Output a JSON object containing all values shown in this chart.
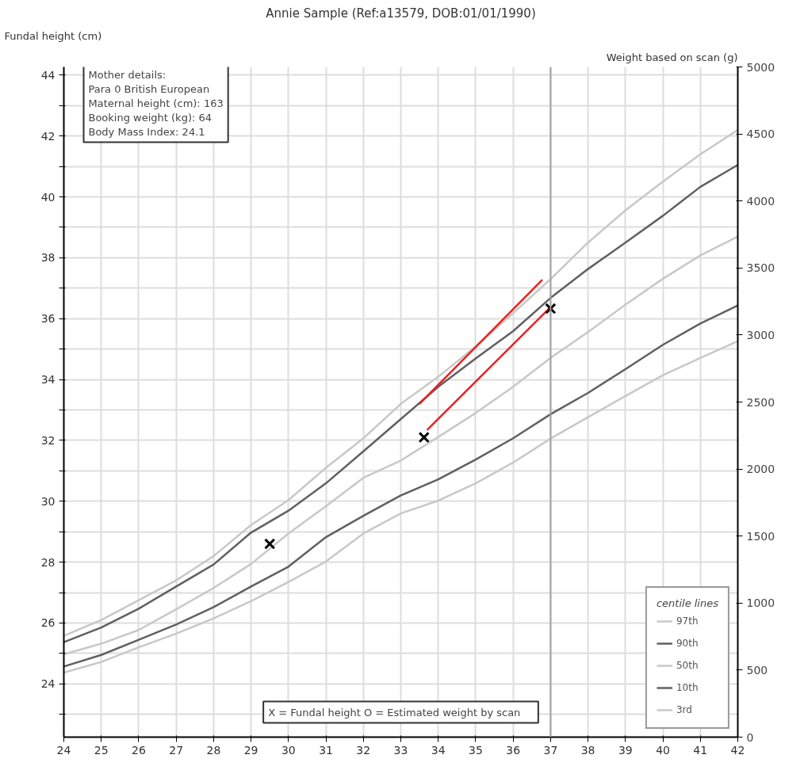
{
  "chart_data": {
    "type": "line",
    "title": "Annie Sample (Ref:a13579, DOB:01/01/1990)",
    "ylabel": "Fundal height (cm)",
    "y2label": "Weight based on scan (g)",
    "legend_title": "centile lines",
    "legend": "bottom right",
    "grid": true,
    "x": [
      24,
      25,
      26,
      27,
      28,
      29,
      30,
      31,
      32,
      33,
      34,
      35,
      36,
      37,
      38,
      39,
      40,
      41,
      42
    ],
    "xlim": [
      24,
      42
    ],
    "xticks": [
      24,
      25,
      26,
      27,
      28,
      29,
      30,
      31,
      32,
      33,
      34,
      35,
      36,
      37,
      38,
      39,
      40,
      41,
      42
    ],
    "ylim": [
      22.25,
      44.27
    ],
    "yticks": [
      {
        "value": 23,
        "label": null
      },
      24,
      {
        "value": 25,
        "label": null
      },
      26,
      {
        "value": 27,
        "label": null
      },
      28,
      {
        "value": 29,
        "label": null
      },
      30,
      {
        "value": 31,
        "label": null
      },
      32,
      {
        "value": 33,
        "label": null
      },
      34,
      {
        "value": 35,
        "label": null
      },
      36,
      {
        "value": 37,
        "label": null
      },
      38,
      {
        "value": 39,
        "label": null
      },
      40,
      {
        "value": 41,
        "label": null
      },
      42,
      {
        "value": 43,
        "label": null
      },
      44
    ],
    "y2lim": [
      0,
      5000
    ],
    "y2ticks": [
      0,
      500,
      1000,
      1500,
      2000,
      2500,
      3000,
      3500,
      4000,
      4500,
      5000
    ],
    "ref_lines": [
      {
        "axis": "x",
        "value": 37,
        "color": "#a0a0a0"
      }
    ],
    "series": [
      {
        "name": "97th",
        "color": "#c8c8c8",
        "values": [
          25.58,
          26.1,
          26.75,
          27.4,
          28.2,
          29.22,
          30.04,
          31.1,
          32.07,
          33.2,
          34.09,
          35.09,
          36.18,
          37.3,
          38.5,
          39.56,
          40.5,
          41.4,
          42.2
        ]
      },
      {
        "name": "90th",
        "color": "#606060",
        "values": [
          25.37,
          25.85,
          26.47,
          27.2,
          27.92,
          28.97,
          29.69,
          30.59,
          31.64,
          32.7,
          33.76,
          34.69,
          35.59,
          36.68,
          37.63,
          38.5,
          39.38,
          40.33,
          41.05
        ]
      },
      {
        "name": "50th",
        "color": "#c8c8c8",
        "values": [
          24.97,
          25.32,
          25.77,
          26.45,
          27.15,
          27.94,
          28.94,
          29.84,
          30.77,
          31.34,
          32.11,
          32.9,
          33.76,
          34.71,
          35.56,
          36.46,
          37.31,
          38.08,
          38.7
        ]
      },
      {
        "name": "10th",
        "color": "#606060",
        "values": [
          24.57,
          24.95,
          25.45,
          25.95,
          26.52,
          27.2,
          27.85,
          28.82,
          29.52,
          30.19,
          30.72,
          31.37,
          32.07,
          32.86,
          33.56,
          34.34,
          35.14,
          35.84,
          36.43
        ]
      },
      {
        "name": "3rd",
        "color": "#c8c8c8",
        "values": [
          24.37,
          24.72,
          25.2,
          25.65,
          26.15,
          26.72,
          27.35,
          28.02,
          28.94,
          29.6,
          30.02,
          30.59,
          31.27,
          32.06,
          32.76,
          33.46,
          34.14,
          34.71,
          35.26
        ]
      },
      {
        "type": "line",
        "color": "#ee2020",
        "x": [
          33.49,
          36.78
        ],
        "values": [
          33.19,
          37.28
        ]
      },
      {
        "type": "line",
        "color": "#ee2020",
        "x": [
          33.7,
          37.0
        ],
        "values": [
          32.34,
          36.38
        ]
      },
      {
        "type": "scatter",
        "marker": "cross",
        "color": "#000000",
        "x": [
          29.5,
          33.62,
          37.0
        ],
        "values": [
          28.6,
          32.1,
          36.33
        ]
      }
    ],
    "annotations": [
      "Mother details:\nPara 0  British European\nMaternal height (cm): 163\nBooking weight (kg): 64\nBody Mass Index: 24.1",
      "X = Fundal height     O = Estimated weight by scan"
    ]
  }
}
